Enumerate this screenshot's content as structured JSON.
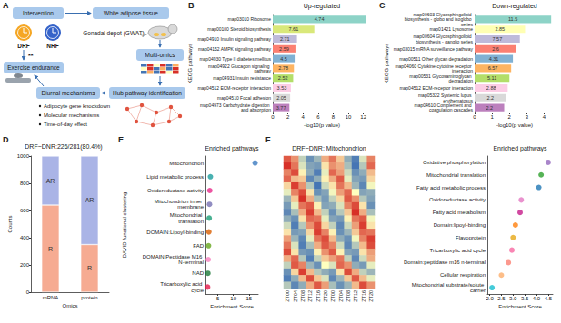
{
  "panel_labels": [
    "A",
    "B",
    "C",
    "D",
    "E",
    "F"
  ],
  "diagram": {
    "intervention": "Intervention",
    "groups": [
      {
        "label": "DRF",
        "color": "#f5a623"
      },
      {
        "label": "NRF",
        "color": "#3563c9"
      }
    ],
    "significance": "**",
    "exercise": "Exercise endurance",
    "tissue": "White adipose tissue",
    "depot": "Gonadal depot (GWAT)",
    "omics": "Multi-omics",
    "hub": "Hub pathway identification",
    "mechanisms": "Diurnal mechanisms",
    "bullets": [
      "Adipocyte gene knockdown",
      "Molecular mechanisms",
      "Time-of-day effect"
    ]
  },
  "chart_data": [
    {
      "type": "bar",
      "orientation": "horizontal",
      "title": "Up-regulated",
      "x_label": "-log10(p value)",
      "y_label": "KEGG pathways",
      "categories": [
        "map03010 Ribosome",
        "map00100 Steroid biosynthesis",
        "map04910 Insulin signaling pathway",
        "map04152 AMPK signaling pathway",
        "map04930 Type II diabetes mellitus",
        "map04922 Glucagon signaling pathway",
        "map04931 Insulin resistance",
        "map04512 ECM-receptor interaction",
        "map04510 Focal adhesion",
        "map04973 Carbohydrate digestion and absorption"
      ],
      "values": [
        12.3,
        5.5,
        3.2,
        3.0,
        2.9,
        2.8,
        2.7,
        2.4,
        2.3,
        2.2
      ],
      "annotations": [
        "4.74",
        "7.61",
        "2.71",
        "2.59",
        "4.5",
        "2.78",
        "2.52",
        "3.53",
        "2.05",
        "3.77"
      ],
      "colors": [
        "#8dd3c7",
        "#d9e87a",
        "#bebada",
        "#fb8072",
        "#80b1d3",
        "#fdb462",
        "#b3de69",
        "#fccde5",
        "#d9d9d9",
        "#bc80bd"
      ],
      "xlim": [
        0,
        13
      ],
      "xticks": [
        0,
        2,
        4,
        6,
        8,
        10,
        12
      ],
      "grid": false
    },
    {
      "type": "bar",
      "orientation": "horizontal",
      "title": "Down-regulated",
      "x_label": "-log10(p value)",
      "y_label": "KEGG pathways",
      "categories": [
        "map00603 Glycosphingolipid biosynthesis - globo and isoglobo series",
        "map01421 Lysosome",
        "map00604 Glycosphingolipid biosynthesis - ganglio series",
        "map03015 mRNA surveillance pathway",
        "map00511 Other glycan degradation",
        "map04060 Cytokine-cytokine receptor interaction",
        "map00531 Glycosaminoglycan degradation",
        "map04512 ECM-receptor interaction",
        "map05322 Systemic lupus erythematosus",
        "map04610 Complement and coagulation cascades"
      ],
      "values": [
        4.4,
        2.9,
        2.6,
        2.4,
        2.2,
        2.1,
        2.0,
        1.9,
        1.8,
        1.7
      ],
      "annotations": [
        "11.5",
        "2.85",
        "7.57",
        "2.6",
        "4.31",
        "6.57",
        "5.11",
        "2.88",
        "2.2",
        "2.2"
      ],
      "colors": [
        "#8dd3c7",
        "#ffffb3",
        "#bebada",
        "#fb8072",
        "#80b1d3",
        "#fdb462",
        "#b3de69",
        "#fccde5",
        "#d9d9d9",
        "#bc80bd"
      ],
      "xlim": [
        0,
        4.6
      ],
      "xticks": [
        0,
        1,
        2,
        3,
        4
      ],
      "grid": false
    },
    {
      "type": "bar",
      "stacked": true,
      "title": "DRF~DNR:226/281(80.4%)",
      "x_label": "Omics",
      "y_label": "Counts",
      "categories": [
        "mRNA",
        "protein"
      ],
      "series": [
        {
          "name": "R",
          "color": "#f6ab92",
          "values": [
            640,
            350
          ]
        },
        {
          "name": "AR",
          "color": "#aab4e6",
          "values": [
            360,
            650
          ]
        }
      ],
      "ylim": [
        0,
        1000
      ],
      "yticks": [
        0,
        200,
        400,
        600,
        800,
        1000
      ],
      "grid": false
    },
    {
      "type": "scatter",
      "marker": "circle",
      "title": "Enriched pathways",
      "x_label": "Enrichment Score",
      "y_label": "DAVID functional clustering",
      "categories": [
        "Mitochondrion",
        "Lipid metabolic process",
        "Oxidoreductase activity",
        "Mitochondrion inner membrane",
        "Mitochondrial translation",
        "DOMAIN:Lipoyl-binding",
        "FAD",
        "DOMAIN:Peptidase M16 N-terminal",
        "NAD",
        "Tricarboxylic acid cycle"
      ],
      "values": [
        17,
        2.6,
        2.4,
        2.3,
        2.2,
        2.1,
        2.0,
        1.9,
        1.8,
        1.7
      ],
      "colors": [
        "#3b7bbf",
        "#1b9e9e",
        "#e7298a",
        "#7570b3",
        "#1b9e77",
        "#d95f02",
        "#66a61e",
        "#f781bf",
        "#1b7837",
        "#e41a4c"
      ],
      "xlim": [
        1,
        18
      ],
      "xticks": [
        5,
        10,
        15
      ],
      "grid": false
    },
    {
      "type": "heatmap",
      "title": "DRF~DNR: Mitochondrion",
      "categories": [
        "ZT00",
        "ZT04",
        "ZT08",
        "ZT12",
        "ZT16",
        "ZT20",
        "ZT00",
        "ZT04",
        "ZT08",
        "ZT12",
        "ZT16",
        "ZT20"
      ],
      "tick_labels": "x",
      "colors": [
        "#4575b4",
        "#ffffbf",
        "#d73027"
      ],
      "cells": [
        [
          1.2,
          0.8,
          -0.5,
          -1.2,
          -0.8,
          0.6,
          1.0,
          0.4,
          -0.9,
          -1.4,
          -0.3,
          0.9
        ],
        [
          1.5,
          1.0,
          -0.3,
          -1.0,
          -1.1,
          0.2,
          0.8,
          0.6,
          -0.7,
          -1.5,
          -0.6,
          1.1
        ],
        [
          0.9,
          1.3,
          0.1,
          -0.9,
          -1.4,
          -0.2,
          1.1,
          0.7,
          -0.4,
          -1.2,
          -0.9,
          0.5
        ],
        [
          1.1,
          0.5,
          0.4,
          -1.3,
          -0.9,
          0.1,
          0.6,
          1.2,
          -0.2,
          -1.0,
          -1.1,
          0.3
        ],
        [
          0.3,
          1.4,
          0.8,
          -0.6,
          -1.5,
          -0.4,
          0.2,
          1.0,
          0.5,
          -0.8,
          -1.3,
          -0.1
        ],
        [
          -0.2,
          0.9,
          1.3,
          0.2,
          -1.2,
          -1.0,
          -0.1,
          0.7,
          1.1,
          0.0,
          -1.0,
          -0.9
        ],
        [
          -0.8,
          0.4,
          1.5,
          0.6,
          -0.7,
          -1.1,
          -0.5,
          0.3,
          1.2,
          0.8,
          -0.6,
          -1.0
        ],
        [
          -1.1,
          -0.2,
          1.0,
          1.2,
          0.1,
          -1.0,
          -0.9,
          -0.3,
          0.9,
          1.3,
          0.2,
          -1.2
        ],
        [
          -1.3,
          -0.7,
          0.6,
          1.4,
          0.5,
          -0.5,
          -1.2,
          -0.6,
          0.4,
          1.5,
          0.6,
          -0.7
        ],
        [
          -0.9,
          -1.2,
          0.2,
          1.1,
          1.0,
          -0.2,
          -1.0,
          -1.1,
          0.1,
          1.0,
          1.2,
          -0.1
        ],
        [
          -0.4,
          -1.4,
          -0.6,
          0.8,
          1.3,
          0.3,
          -0.5,
          -1.3,
          -0.4,
          0.7,
          1.4,
          0.2
        ],
        [
          0.2,
          -1.1,
          -1.0,
          0.3,
          1.4,
          0.9,
          0.1,
          -1.2,
          -0.8,
          0.4,
          1.1,
          1.0
        ],
        [
          0.7,
          -0.8,
          -1.3,
          -0.2,
          1.0,
          1.3,
          0.5,
          -0.9,
          -1.2,
          -0.1,
          0.9,
          1.4
        ],
        [
          1.0,
          -0.3,
          -1.4,
          -0.7,
          0.6,
          1.2,
          0.9,
          -0.4,
          -1.3,
          -0.6,
          0.5,
          1.3
        ],
        [
          1.3,
          0.2,
          -1.1,
          -1.2,
          0.1,
          0.8,
          1.2,
          0.1,
          -1.0,
          -1.1,
          0.2,
          0.7
        ],
        [
          0.6,
          1.1,
          -0.6,
          -1.4,
          -0.5,
          0.4,
          0.7,
          1.0,
          -0.5,
          -1.3,
          -0.4,
          0.6
        ],
        [
          -0.5,
          1.2,
          0.9,
          -0.8,
          -1.2,
          0.0,
          -0.3,
          1.1,
          0.8,
          -0.9,
          -1.1,
          -0.2
        ],
        [
          -1.2,
          0.3,
          1.4,
          0.5,
          -0.6,
          -0.9,
          -1.1,
          0.2,
          1.3,
          0.6,
          -0.5,
          -0.8
        ],
        [
          -1.4,
          -0.9,
          0.5,
          1.3,
          0.4,
          -0.3,
          -1.3,
          -0.8,
          0.4,
          1.2,
          0.5,
          -0.2
        ],
        [
          -0.6,
          -1.3,
          -0.9,
          0.6,
          1.2,
          0.7,
          -0.7,
          -1.2,
          -0.8,
          0.5,
          1.3,
          0.8
        ]
      ]
    },
    {
      "type": "scatter",
      "marker": "circle",
      "title": "Enriched pathways",
      "x_label": "Enrichment Score",
      "categories": [
        "Oxidative phosphorylation",
        "Mitochondrial translation",
        "Fatty acid metabolic process",
        "Oxidoreductase activity",
        "Fatty acid metabolism",
        "Domain:lipoyl-binding",
        "Flavoprotein",
        "Tricarboxylic acid cycle",
        "Domain:peptidase m16 n-terminal",
        "Cellular respiration",
        "Mitochondrial substrate/solute carrier"
      ],
      "values": [
        4.5,
        4.2,
        4.1,
        3.35,
        3.3,
        3.1,
        3.0,
        2.95,
        2.8,
        2.5,
        2.1
      ],
      "colors": [
        "#9467bd",
        "#2ca02c",
        "#1f77b4",
        "#e377c2",
        "#c51b8a",
        "#ff7f0e",
        "#e6a817",
        "#f768a1",
        "#fb8072",
        "#fdae6b",
        "#17becf"
      ],
      "xlim": [
        1.9,
        4.7
      ],
      "xticks": [
        {
          "value": 2,
          "label": "2.0"
        },
        {
          "value": 2.5,
          "label": "2.5"
        },
        {
          "value": 3,
          "label": "3.0"
        },
        {
          "value": 3.5,
          "label": "3.5"
        },
        {
          "value": 4,
          "label": "4.0"
        },
        {
          "value": 4.5,
          "label": "4.5"
        }
      ],
      "grid": false
    }
  ]
}
